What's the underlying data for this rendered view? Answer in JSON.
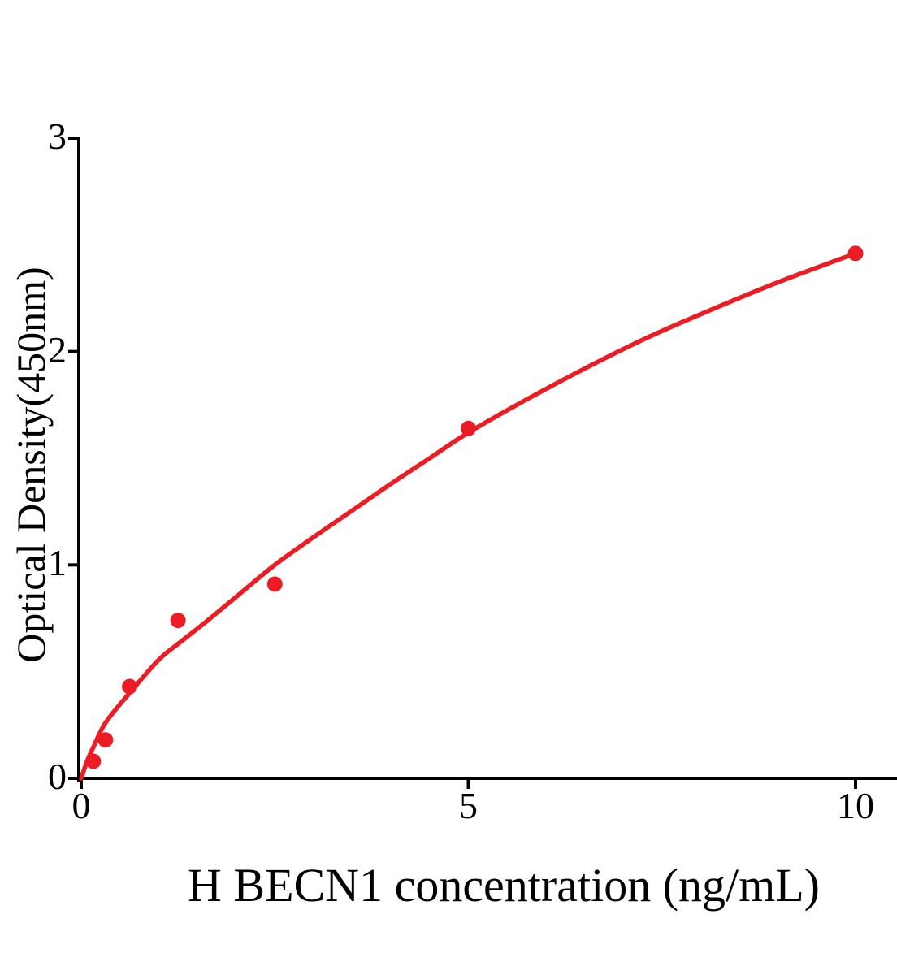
{
  "chart_data": {
    "type": "scatter",
    "title": "",
    "xlabel": "H BECN1 concentration (ng/mL)",
    "ylabel": "Optical Density(450nm)",
    "x_ticks": [
      0,
      5,
      10
    ],
    "y_ticks": [
      0,
      1,
      2,
      3
    ],
    "xlim": [
      0,
      10.55
    ],
    "ylim": [
      0,
      3
    ],
    "grid": false,
    "legend": "none",
    "points": [
      {
        "x": 0.156,
        "od": 0.08
      },
      {
        "x": 0.313,
        "od": 0.18
      },
      {
        "x": 0.625,
        "od": 0.43
      },
      {
        "x": 1.25,
        "od": 0.74
      },
      {
        "x": 2.5,
        "od": 0.91
      },
      {
        "x": 5,
        "od": 1.64
      },
      {
        "x": 10,
        "od": 2.46
      }
    ],
    "fit_curve": [
      [
        0,
        0
      ],
      [
        0.08,
        0.085
      ],
      [
        0.156,
        0.145
      ],
      [
        0.313,
        0.26
      ],
      [
        0.625,
        0.4
      ],
      [
        1.0,
        0.555
      ],
      [
        1.25,
        0.63
      ],
      [
        1.6,
        0.73
      ],
      [
        2.0,
        0.85
      ],
      [
        2.5,
        1.0
      ],
      [
        3.0,
        1.13
      ],
      [
        3.5,
        1.255
      ],
      [
        4.0,
        1.38
      ],
      [
        4.5,
        1.5
      ],
      [
        5.0,
        1.62
      ],
      [
        5.75,
        1.775
      ],
      [
        6.5,
        1.92
      ],
      [
        7.25,
        2.055
      ],
      [
        8.0,
        2.175
      ],
      [
        9.0,
        2.325
      ],
      [
        10,
        2.46
      ]
    ],
    "colors": {
      "series": "#ec1c24",
      "axis": "#000000",
      "background": "#ffffff"
    }
  }
}
